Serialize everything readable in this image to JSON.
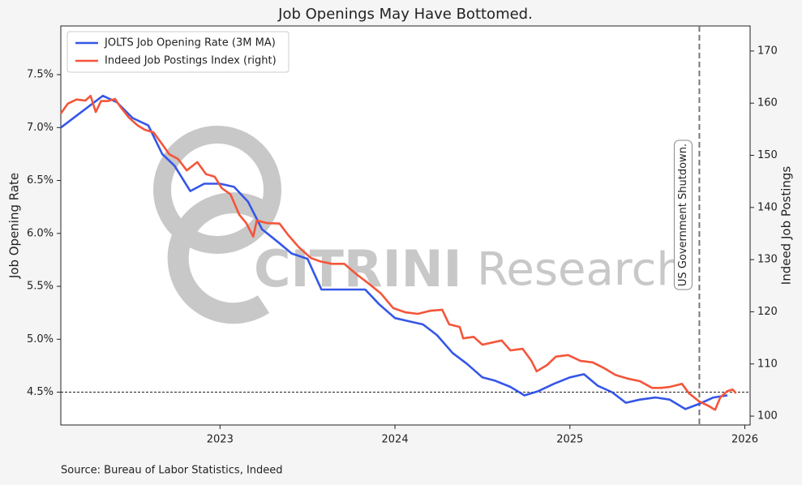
{
  "chart_data": {
    "type": "line",
    "title": "Job Openings May Have Bottomed.",
    "y_label": "Job Opening Rate",
    "y2_label": "Indeed Job Postings",
    "source": "Source: Bureau of Labor Statistics, Indeed",
    "watermark": [
      "CITRINI",
      "Research"
    ],
    "xlim": [
      2022.09,
      2026.03
    ],
    "xticks": [
      2023,
      2024,
      2025,
      2026
    ],
    "ylim": [
      4.19,
      7.96
    ],
    "yticks": [
      {
        "value": 4.5,
        "label": "4.5%"
      },
      {
        "value": 5.0,
        "label": "5.0%"
      },
      {
        "value": 5.5,
        "label": "5.5%"
      },
      {
        "value": 6.0,
        "label": "6.0%"
      },
      {
        "value": 6.5,
        "label": "6.5%"
      },
      {
        "value": 7.0,
        "label": "7.0%"
      },
      {
        "value": 7.5,
        "label": "7.5%"
      }
    ],
    "y2lim": [
      98.3,
      174.8
    ],
    "y2ticks": [
      100,
      110,
      120,
      130,
      140,
      150,
      160,
      170
    ],
    "legend": "upper left",
    "hline": {
      "y": 4.5
    },
    "annotations": [
      {
        "text": "US Government Shutdown.",
        "x": 2025.74
      }
    ],
    "series": [
      {
        "name": "JOLTS Job Opening Rate (3M MA)",
        "color": "#3556e8",
        "x": [
          2022.09,
          2022.33,
          2022.41,
          2022.5,
          2022.59,
          2022.67,
          2022.74,
          2022.83,
          2022.91,
          2023.0,
          2023.08,
          2023.16,
          2023.24,
          2023.33,
          2023.41,
          2023.5,
          2023.58,
          2023.66,
          2023.75,
          2023.83,
          2023.91,
          2024.0,
          2024.08,
          2024.16,
          2024.24,
          2024.33,
          2024.41,
          2024.5,
          2024.57,
          2024.66,
          2024.74,
          2024.82,
          2024.91,
          2025.0,
          2025.08,
          2025.16,
          2025.24,
          2025.32,
          2025.4,
          2025.49,
          2025.57,
          2025.66,
          2025.74,
          2025.82,
          2025.9
        ],
        "values": [
          7.0,
          7.3,
          7.24,
          7.09,
          7.02,
          6.75,
          6.64,
          6.4,
          6.47,
          6.47,
          6.44,
          6.3,
          6.04,
          5.92,
          5.81,
          5.76,
          5.47,
          5.47,
          5.47,
          5.47,
          5.33,
          5.2,
          5.17,
          5.14,
          5.04,
          4.87,
          4.77,
          4.64,
          4.61,
          4.55,
          4.47,
          4.51,
          4.58,
          4.64,
          4.67,
          4.56,
          4.5,
          4.4,
          4.43,
          4.45,
          4.43,
          4.34,
          4.39,
          4.45,
          4.47
        ]
      },
      {
        "name": "Indeed Job Postings Index (right)",
        "color": "#f4553a",
        "axis": "y2",
        "x": [
          2022.09,
          2022.13,
          2022.18,
          2022.23,
          2022.26,
          2022.29,
          2022.32,
          2022.36,
          2022.4,
          2022.43,
          2022.48,
          2022.53,
          2022.57,
          2022.62,
          2022.67,
          2022.71,
          2022.76,
          2022.81,
          2022.87,
          2022.92,
          2022.97,
          2023.01,
          2023.06,
          2023.11,
          2023.15,
          2023.19,
          2023.21,
          2023.27,
          2023.34,
          2023.39,
          2023.45,
          2023.52,
          2023.57,
          2023.64,
          2023.71,
          2023.78,
          2023.85,
          2023.92,
          2023.99,
          2024.06,
          2024.13,
          2024.2,
          2024.27,
          2024.31,
          2024.37,
          2024.39,
          2024.45,
          2024.5,
          2024.57,
          2024.61,
          2024.66,
          2024.73,
          2024.78,
          2024.81,
          2024.87,
          2024.92,
          2024.99,
          2025.06,
          2025.13,
          2025.19,
          2025.26,
          2025.33,
          2025.4,
          2025.47,
          2025.52,
          2025.57,
          2025.64,
          2025.68,
          2025.74,
          2025.79,
          2025.83,
          2025.86,
          2025.9,
          2025.93,
          2025.95
        ],
        "values": [
          158.0,
          159.9,
          160.7,
          160.5,
          161.4,
          158.3,
          160.4,
          160.4,
          160.8,
          159.3,
          157.2,
          155.7,
          154.9,
          154.4,
          152.1,
          150.2,
          149.3,
          147.1,
          148.7,
          146.4,
          145.9,
          143.7,
          142.5,
          138.6,
          137.0,
          134.4,
          137.5,
          137.0,
          136.9,
          134.7,
          132.4,
          130.3,
          129.7,
          129.2,
          129.2,
          127.2,
          125.4,
          123.5,
          120.7,
          119.9,
          119.6,
          120.2,
          120.4,
          117.6,
          117.1,
          114.9,
          115.2,
          113.7,
          114.2,
          114.5,
          112.6,
          112.9,
          110.6,
          108.6,
          109.8,
          111.4,
          111.7,
          110.6,
          110.3,
          109.3,
          107.9,
          107.2,
          106.7,
          105.4,
          105.4,
          105.6,
          106.2,
          104.4,
          102.8,
          102.0,
          101.2,
          103.6,
          104.8,
          105.1,
          104.4
        ]
      }
    ]
  }
}
